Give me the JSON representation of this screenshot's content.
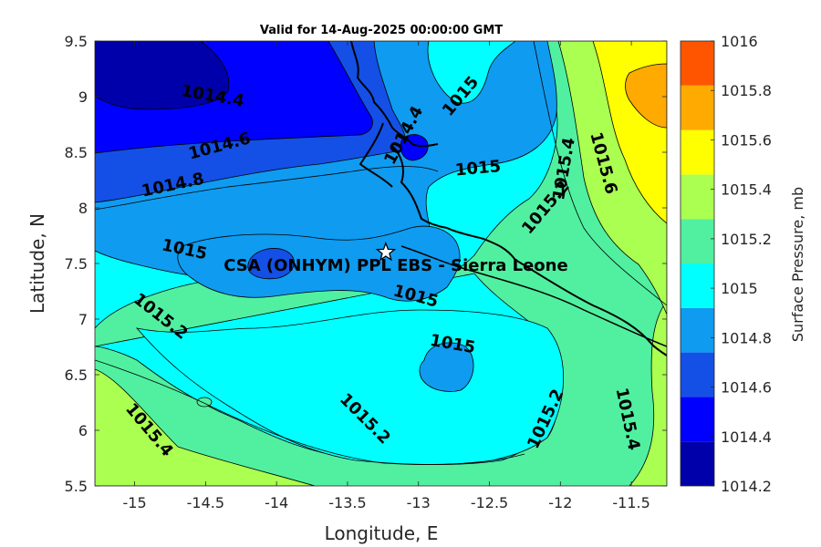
{
  "title": "Valid for 14-Aug-2025 00:00:00 GMT",
  "x_axis": {
    "label": "Longitude, E",
    "min": -15.28,
    "max": -11.25,
    "ticks": [
      "-15",
      "-14.5",
      "-14",
      "-13.5",
      "-13",
      "-12.5",
      "-12",
      "-11.5"
    ],
    "tick_values": [
      -15,
      -14.5,
      -14,
      -13.5,
      -13,
      -12.5,
      -12,
      -11.5
    ]
  },
  "y_axis": {
    "label": "Latitude, N",
    "min": 5.5,
    "max": 9.5,
    "ticks": [
      "5.5",
      "6",
      "6.5",
      "7",
      "7.5",
      "8",
      "8.5",
      "9",
      "9.5"
    ],
    "tick_values": [
      5.5,
      6,
      6.5,
      7,
      7.5,
      8,
      8.5,
      9,
      9.5
    ]
  },
  "colorbar": {
    "label": "Surface Pressure, mb",
    "ticks": [
      "1014.2",
      "1014.4",
      "1014.6",
      "1014.8",
      "1015",
      "1015.2",
      "1015.4",
      "1015.6",
      "1015.8",
      "1016"
    ],
    "levels": [
      1014.2,
      1014.3,
      1014.4,
      1014.5,
      1014.6,
      1014.7,
      1014.8,
      1014.9,
      1015.0,
      1015.1,
      1015.2,
      1015.3,
      1015.4,
      1015.5,
      1015.6,
      1015.7,
      1015.8,
      1015.9,
      1016.0
    ],
    "colors": [
      "#0000aa",
      "#0000ff",
      "#1450e6",
      "#0f9bf0",
      "#00ffff",
      "#50f0a0",
      "#aaff50",
      "#ffff00",
      "#ffaa00",
      "#ff5500"
    ]
  },
  "site": {
    "name": "CSA (ONHYM) PPL EBS  - Sierra Leone",
    "lon": -13.23,
    "lat": 7.6
  },
  "chart_data": {
    "type": "heatmap",
    "variable": "Surface Pressure, mb",
    "contour_labels": [
      {
        "text": "1014.4",
        "lon": -14.45,
        "lat": 9.0
      },
      {
        "text": "1014.6",
        "lon": -14.4,
        "lat": 8.55
      },
      {
        "text": "1014.8",
        "lon": -14.73,
        "lat": 8.2
      },
      {
        "text": "1014.4",
        "lon": -13.1,
        "lat": 8.65
      },
      {
        "text": "1015",
        "lon": -12.7,
        "lat": 9.0
      },
      {
        "text": "1015",
        "lon": -12.58,
        "lat": 8.35
      },
      {
        "text": "1015",
        "lon": -14.65,
        "lat": 7.62
      },
      {
        "text": "1015",
        "lon": -13.02,
        "lat": 7.2
      },
      {
        "text": "1015",
        "lon": -12.76,
        "lat": 6.77
      },
      {
        "text": "1015.2",
        "lon": -12.1,
        "lat": 8.0
      },
      {
        "text": "1015.2",
        "lon": -14.82,
        "lat": 7.02
      },
      {
        "text": "1015.2",
        "lon": -13.38,
        "lat": 6.1
      },
      {
        "text": "1015.2",
        "lon": -12.1,
        "lat": 6.1
      },
      {
        "text": "1015.4",
        "lon": -11.97,
        "lat": 8.35
      },
      {
        "text": "1015.4",
        "lon": -11.53,
        "lat": 6.1
      },
      {
        "text": "1015.4",
        "lon": -14.9,
        "lat": 6.0
      },
      {
        "text": "1015.6",
        "lon": -11.7,
        "lat": 8.4
      }
    ]
  }
}
